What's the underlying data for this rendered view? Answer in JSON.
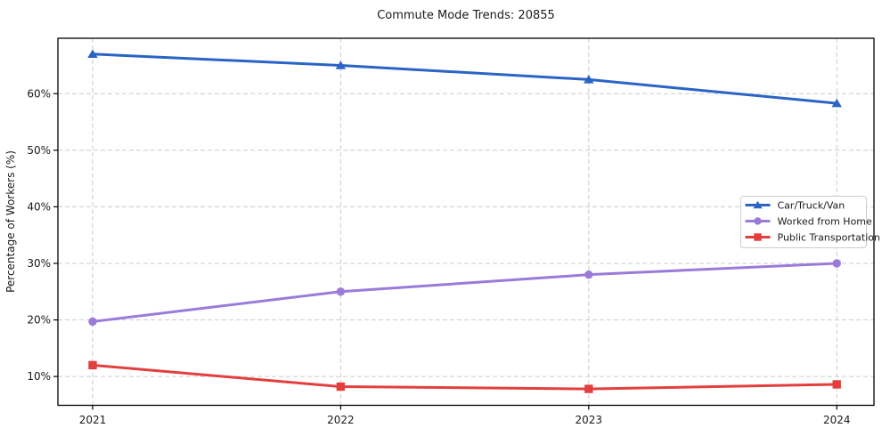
{
  "chart_data": {
    "type": "line",
    "title": "Commute Mode Trends: 20855",
    "ylabel": "Percentage of Workers (%)",
    "xlabel": "",
    "x": [
      2021,
      2022,
      2023,
      2024
    ],
    "xtick_labels": [
      "2021",
      "2022",
      "2023",
      "2024"
    ],
    "yticks": [
      10,
      20,
      30,
      40,
      50,
      60
    ],
    "ytick_labels": [
      "10%",
      "20%",
      "30%",
      "40%",
      "50%",
      "60%"
    ],
    "xlim": [
      2020.86,
      2024.15
    ],
    "ylim": [
      4.9,
      69.8
    ],
    "grid": true,
    "grid_style": "dashed",
    "legend_position": "center-right",
    "background_color": "#ffffff",
    "series": [
      {
        "name": "Car/Truck/Van",
        "color": "#2a64c4",
        "marker": "triangle",
        "values": [
          67,
          65,
          62.5,
          58.3
        ]
      },
      {
        "name": "Worked from Home",
        "color": "#9a7bd9",
        "marker": "circle",
        "values": [
          19.7,
          25,
          28,
          30
        ]
      },
      {
        "name": "Public Transportation",
        "color": "#e43f3f",
        "marker": "square",
        "values": [
          12,
          8.2,
          7.8,
          8.6
        ]
      }
    ]
  }
}
